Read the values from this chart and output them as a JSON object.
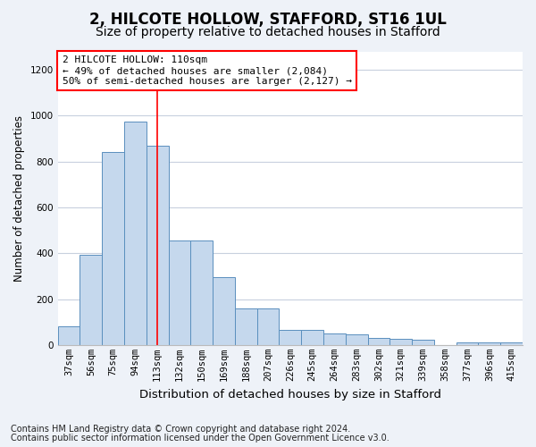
{
  "title1": "2, HILCOTE HOLLOW, STAFFORD, ST16 1UL",
  "title2": "Size of property relative to detached houses in Stafford",
  "xlabel": "Distribution of detached houses by size in Stafford",
  "ylabel": "Number of detached properties",
  "categories": [
    "37sqm",
    "56sqm",
    "75sqm",
    "94sqm",
    "113sqm",
    "132sqm",
    "150sqm",
    "169sqm",
    "188sqm",
    "207sqm",
    "226sqm",
    "245sqm",
    "264sqm",
    "283sqm",
    "302sqm",
    "321sqm",
    "339sqm",
    "358sqm",
    "377sqm",
    "396sqm",
    "415sqm"
  ],
  "values": [
    80,
    395,
    840,
    975,
    870,
    455,
    455,
    295,
    160,
    160,
    65,
    65,
    50,
    45,
    30,
    25,
    22,
    0,
    13,
    13,
    13
  ],
  "bar_color": "#c5d8ed",
  "bar_edgecolor": "#5a8fbe",
  "red_line_index": 4,
  "ylim": [
    0,
    1280
  ],
  "yticks": [
    0,
    200,
    400,
    600,
    800,
    1000,
    1200
  ],
  "annotation_text": "2 HILCOTE HOLLOW: 110sqm\n← 49% of detached houses are smaller (2,084)\n50% of semi-detached houses are larger (2,127) →",
  "footnote1": "Contains HM Land Registry data © Crown copyright and database right 2024.",
  "footnote2": "Contains public sector information licensed under the Open Government Licence v3.0.",
  "bg_color": "#eef2f8",
  "plot_bg_color": "#ffffff",
  "grid_color": "#c8d0de",
  "title1_fontsize": 12,
  "title2_fontsize": 10,
  "xlabel_fontsize": 9.5,
  "ylabel_fontsize": 8.5,
  "tick_fontsize": 7.5,
  "annotation_fontsize": 8,
  "footnote_fontsize": 7
}
